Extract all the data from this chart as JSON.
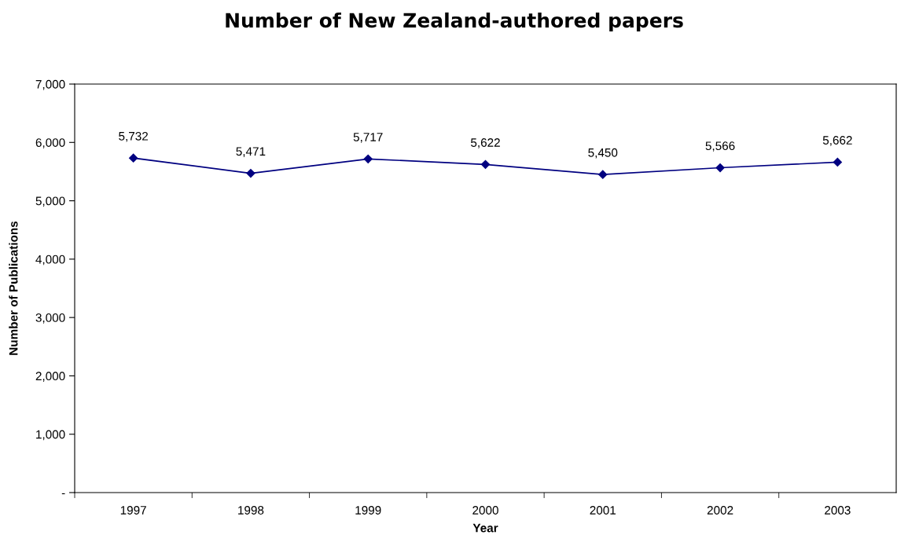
{
  "chart_data": {
    "type": "line",
    "title": "Number of New Zealand-authored papers",
    "xlabel": "Year",
    "ylabel": "Number of Publications",
    "categories": [
      "1997",
      "1998",
      "1999",
      "2000",
      "2001",
      "2002",
      "2003"
    ],
    "series": [
      {
        "color": "#000080",
        "values": [
          5732,
          5471,
          5717,
          5622,
          5450,
          5566,
          5662
        ],
        "value_labels": [
          "5,732",
          "5,471",
          "5,717",
          "5,622",
          "5,450",
          "5,566",
          "5,662"
        ]
      }
    ],
    "ylim": [
      0,
      7000
    ],
    "yticks": [
      {
        "value": 0,
        "label": "-"
      },
      {
        "value": 1000,
        "label": "1,000"
      },
      {
        "value": 2000,
        "label": "2,000"
      },
      {
        "value": 3000,
        "label": "3,000"
      },
      {
        "value": 4000,
        "label": "4,000"
      },
      {
        "value": 5000,
        "label": "5,000"
      },
      {
        "value": 6000,
        "label": "6,000"
      },
      {
        "value": 7000,
        "label": "7,000"
      }
    ],
    "grid": false,
    "marker": "diamond",
    "line_style": "solid"
  }
}
